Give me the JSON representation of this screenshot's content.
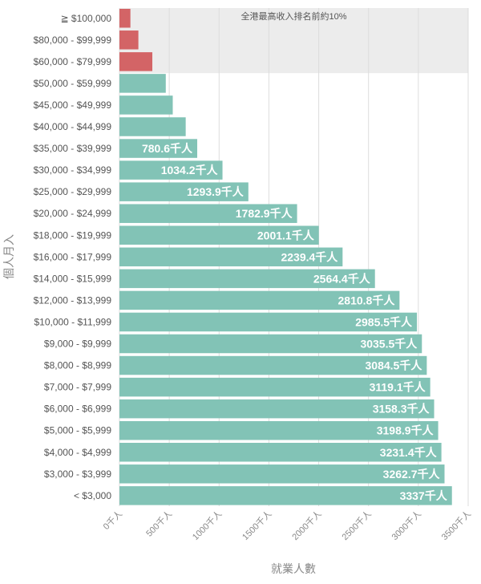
{
  "chart_data": {
    "type": "bar",
    "orientation": "horizontal",
    "categories": [
      "≧ $100,000",
      "$80,000 - $99,999",
      "$60,000 - $79,999",
      "$50,000 - $59,999",
      "$45,000 - $49,999",
      "$40,000 - $44,999",
      "$35,000 - $39,999",
      "$30,000 - $34,999",
      "$25,000 - $29,999",
      "$20,000 - $24,999",
      "$18,000 - $19,999",
      "$16,000 - $17,999",
      "$14,000 - $15,999",
      "$12,000 - $13,999",
      "$10,000 - $11,999",
      "$9,000 - $9,999",
      "$8,000 - $8,999",
      "$7,000 - $7,999",
      "$6,000 - $6,999",
      "$5,000 - $5,999",
      "$4,000 - $4,999",
      "$3,000 - $3,999",
      "< $3,000"
    ],
    "values": [
      110,
      190,
      330,
      465,
      535,
      665,
      780.6,
      1034.2,
      1293.9,
      1782.9,
      2001.1,
      2239.4,
      2564.4,
      2810.8,
      2985.5,
      3035.5,
      3084.5,
      3119.1,
      3158.3,
      3198.9,
      3231.4,
      3262.7,
      3337
    ],
    "data_labels": [
      "",
      "",
      "",
      "",
      "",
      "",
      "780.6千人",
      "1034.2千人",
      "1293.9千人",
      "1782.9千人",
      "2001.1千人",
      "2239.4千人",
      "2564.4千人",
      "2810.8千人",
      "2985.5千人",
      "3035.5千人",
      "3084.5千人",
      "3119.1千人",
      "3158.3千人",
      "3198.9千人",
      "3231.4千人",
      "3262.7千人",
      "3337千人"
    ],
    "highlight_count": 3,
    "highlight_note": "全港最高收入排名前約10%",
    "xlabel": "就業人數",
    "ylabel": "個人月入",
    "xlim": [
      0,
      3500
    ],
    "xticks": [
      0,
      500,
      1000,
      1500,
      2000,
      2500,
      3000,
      3500
    ],
    "xtick_labels": [
      "0千人",
      "500千人",
      "1000千人",
      "1500千人",
      "2000千人",
      "2500千人",
      "3000千人",
      "3500千人"
    ],
    "colors": {
      "bar": "#82c3b6",
      "highlight_bar": "#d36466",
      "band": "#ececec",
      "grid": "#dddddd"
    }
  }
}
